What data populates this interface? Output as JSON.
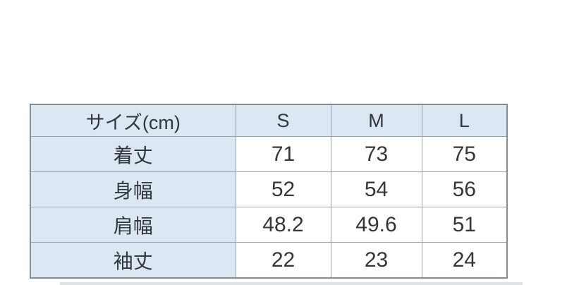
{
  "chart_data": {
    "type": "table",
    "columns": [
      "サイズ(cm)",
      "S",
      "M",
      "L"
    ],
    "rows": [
      [
        "着丈",
        71,
        73,
        75
      ],
      [
        "身幅",
        52,
        54,
        56
      ],
      [
        "肩幅",
        48.2,
        49.6,
        51
      ],
      [
        "袖丈",
        22,
        23,
        24
      ]
    ],
    "layout_hints": {
      "header_row_shaded": true,
      "label_column_shaded": true,
      "grid": true
    }
  },
  "colors": {
    "header_bg": "#dbe8f4",
    "cell_bg": "#ffffff",
    "inner_border": "#9aa2aa",
    "outer_border": "#848d95",
    "text": "#33373b",
    "page_bg": "#ffffff"
  }
}
